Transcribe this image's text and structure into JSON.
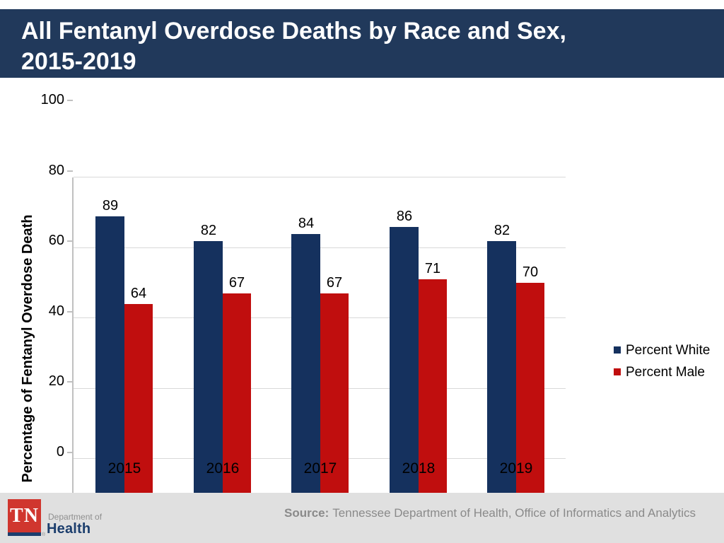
{
  "header": {
    "title_line1": "All Fentanyl Overdose Deaths by Race and Sex,",
    "title_line2": "2015-2019"
  },
  "chart_data": {
    "type": "bar",
    "categories": [
      "2015",
      "2016",
      "2017",
      "2018",
      "2019"
    ],
    "series": [
      {
        "name": "Percent White",
        "color": "#15315E",
        "values": [
          89,
          82,
          84,
          86,
          82
        ]
      },
      {
        "name": "Percent Male",
        "color": "#C00E0E",
        "values": [
          64,
          67,
          67,
          71,
          70
        ]
      }
    ],
    "title": "",
    "xlabel": "",
    "ylabel": "Percentage of Fentanyl Overdose Death",
    "ylim": [
      0,
      100
    ],
    "yticks": [
      0,
      20,
      40,
      60,
      80,
      100
    ],
    "grid": true,
    "data_labels": true,
    "legend_position": "right"
  },
  "footer": {
    "logo_abbr": "TN",
    "registered_mark": "®",
    "dept_prefix": "Department of",
    "dept_name": "Health",
    "source_label": "Source:",
    "source_text": "Tennessee Department of Health, Office of Informatics and Analytics"
  },
  "colors": {
    "banner_navy": "#21395B",
    "grid_gray": "#D9D9D9",
    "axis_gray": "#C0C0C0",
    "label_black": "#000000",
    "footer_gray": "#E0E0E0",
    "logo_red": "#D0362E",
    "brand_navy": "#1C3E6D",
    "muted_gray": "#8F8F8F",
    "source_gray": "#8A8A8A"
  }
}
